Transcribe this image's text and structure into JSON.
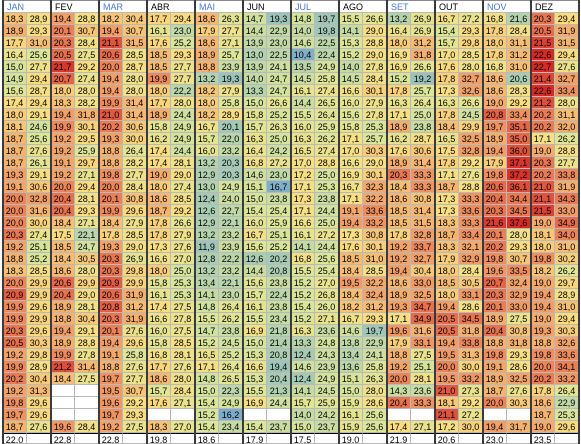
{
  "sheet": {
    "months": [
      {
        "label": "JAN",
        "highlight": true
      },
      {
        "label": "FEV",
        "highlight": false
      },
      {
        "label": "MAR",
        "highlight": true
      },
      {
        "label": "ABR",
        "highlight": false
      },
      {
        "label": "MAI",
        "highlight": true
      },
      {
        "label": "JUN",
        "highlight": false
      },
      {
        "label": "JUL",
        "highlight": true
      },
      {
        "label": "AGO",
        "highlight": false
      },
      {
        "label": "SET",
        "highlight": true
      },
      {
        "label": "OUT",
        "highlight": false
      },
      {
        "label": "NOV",
        "highlight": true
      },
      {
        "label": "DEZ",
        "highlight": false
      }
    ],
    "rows": [
      [
        "18,3",
        "28,9",
        "19,4",
        "28,8",
        "18,2",
        "30,4",
        "17,7",
        "29,4",
        "18,6",
        "26,3",
        "14,7",
        "19,3",
        "14,8",
        "19,7",
        "15,5",
        "26,6",
        "13,2",
        "26,9",
        "16,7",
        "27,2",
        "16,8",
        "21,6",
        "20,3",
        "29,4"
      ],
      [
        "18,9",
        "29,3",
        "20,1",
        "30,7",
        "19,4",
        "30,7",
        "16,1",
        "23,0",
        "17,9",
        "27,7",
        "14,4",
        "22,9",
        "14,0",
        "19,8",
        "14,1",
        "29,0",
        "16,4",
        "26,9",
        "15,4",
        "29,3",
        "17,8",
        "28,4",
        "20,5",
        "31,9"
      ],
      [
        "17,7",
        "31,0",
        "20,3",
        "28,4",
        "21,1",
        "31,5",
        "17,6",
        "25,2",
        "18,6",
        "27,1",
        "13,9",
        "23,0",
        "14,6",
        "22,5",
        "15,3",
        "28,8",
        "18,0",
        "31,2",
        "15,7",
        "29,8",
        "18,0",
        "31,1",
        "21,5",
        "31,5"
      ],
      [
        "16,4",
        "25,6",
        "20,5",
        "27,5",
        "20,6",
        "28,5",
        "18,5",
        "29,3",
        "18,9",
        "25,7",
        "13,0",
        "22,5",
        "10,4",
        "22,4",
        "15,2",
        "29,0",
        "16,9",
        "31,8",
        "17,0",
        "28,5",
        "17,8",
        "31,2",
        "22,6",
        "29,4"
      ],
      [
        "15,0",
        "27,7",
        "21,7",
        "29,2",
        "20,0",
        "28,7",
        "18,5",
        "27,7",
        "18,8",
        "23,9",
        "13,9",
        "24,1",
        "13,5",
        "24,9",
        "14,0",
        "27,8",
        "16,9",
        "26,6",
        "17,6",
        "28,0",
        "16,8",
        "31,0",
        "22,7",
        "27,6"
      ],
      [
        "14,9",
        "29,4",
        "20,7",
        "27,4",
        "19,4",
        "28,0",
        "19,9",
        "27,7",
        "13,2",
        "19,3",
        "14,0",
        "24,7",
        "14,5",
        "25,8",
        "14,5",
        "28,4",
        "15,2",
        "19,2",
        "17,8",
        "32,7",
        "18,6",
        "20,6",
        "21,4",
        "32,7"
      ],
      [
        "15,6",
        "28,7",
        "18,0",
        "28,0",
        "19,4",
        "28,0",
        "18,0",
        "22,2",
        "18,2",
        "27,9",
        "13,3",
        "24,7",
        "16,1",
        "27,4",
        "16,6",
        "30,1",
        "17,8",
        "25,7",
        "17,3",
        "32,6",
        "18,6",
        "28,3",
        "22,6",
        "33,4"
      ],
      [
        "17,4",
        "29,4",
        "18,3",
        "28,2",
        "19,9",
        "31,4",
        "17,7",
        "28,0",
        "18,0",
        "25,8",
        "15,0",
        "26,6",
        "14,4",
        "26,5",
        "16,0",
        "27,9",
        "16,3",
        "26,4",
        "16,3",
        "26,6",
        "19,0",
        "29,2",
        "21,2",
        "28,0"
      ],
      [
        "18,0",
        "29,1",
        "19,4",
        "31,8",
        "21,0",
        "31,4",
        "18,9",
        "24,4",
        "18,2",
        "28,9",
        "15,8",
        "25,2",
        "15,5",
        "26,4",
        "15,6",
        "27,8",
        "17,1",
        "25,0",
        "17,8",
        "24,5",
        "20,8",
        "33,4",
        "20,2",
        "31,1"
      ],
      [
        "18,1",
        "24,6",
        "19,9",
        "30,1",
        "20,2",
        "30,6",
        "15,8",
        "24,9",
        "16,7",
        "20,1",
        "15,7",
        "26,3",
        "16,0",
        "25,9",
        "15,8",
        "25,3",
        "18,9",
        "23,8",
        "18,4",
        "29,9",
        "19,7",
        "35,1",
        "20,2",
        "32,0"
      ],
      [
        "18,7",
        "25,6",
        "19,2",
        "29,5",
        "19,3",
        "30,0",
        "16,2",
        "24,9",
        "15,7",
        "22,0",
        "16,3",
        "25,0",
        "16,3",
        "26,2",
        "17,1",
        "25,7",
        "16,2",
        "28,7",
        "16,5",
        "32,5",
        "18,9",
        "35,0",
        "17,1",
        "26,2"
      ],
      [
        "18,7",
        "27,6",
        "19,2",
        "25,9",
        "18,8",
        "26,4",
        "17,4",
        "24,4",
        "16,0",
        "23,2",
        "16,4",
        "24,2",
        "16,5",
        "27,4",
        "17,0",
        "30,3",
        "17,6",
        "30,6",
        "17,5",
        "32,8",
        "19,4",
        "36,0",
        "19,0",
        "28,8"
      ],
      [
        "18,7",
        "26,1",
        "19,1",
        "29,7",
        "18,8",
        "28,2",
        "17,4",
        "28,1",
        "13,2",
        "20,3",
        "16,8",
        "27,2",
        "17,0",
        "28,8",
        "16,6",
        "29,0",
        "18,9",
        "31,4",
        "17,8",
        "29,2",
        "17,9",
        "37,1",
        "20,3",
        "27,7"
      ],
      [
        "19,3",
        "29,1",
        "19,2",
        "27,1",
        "19,8",
        "27,7",
        "19,0",
        "29,0",
        "12,9",
        "20,3",
        "14,6",
        "23,0",
        "17,2",
        "25,0",
        "16,9",
        "30,1",
        "20,3",
        "33,3",
        "17,1",
        "27,6",
        "19,8",
        "37,2",
        "20,2",
        "33,8"
      ],
      [
        "19,1",
        "30,6",
        "20,0",
        "29,4",
        "20,0",
        "28,4",
        "18,0",
        "27,4",
        "13,0",
        "24,9",
        "15,1",
        "16,7",
        "17,1",
        "25,3",
        "16,7",
        "32,3",
        "18,4",
        "33,3",
        "18,7",
        "28,8",
        "20,6",
        "36,1",
        "21,0",
        "31,9"
      ],
      [
        "20,0",
        "32,8",
        "20,4",
        "28,1",
        "20,1",
        "30,8",
        "18,6",
        "28,5",
        "12,4",
        "24,0",
        "15,0",
        "23,8",
        "17,3",
        "23,8",
        "17,1",
        "32,2",
        "18,6",
        "30,8",
        "17,3",
        "33,3",
        "20,4",
        "34,4",
        "21,1",
        "34,3"
      ],
      [
        "20,0",
        "31,6",
        "20,4",
        "29,3",
        "19,9",
        "29,6",
        "18,7",
        "29,2",
        "12,6",
        "22,7",
        "15,4",
        "25,4",
        "17,1",
        "24,4",
        "19,1",
        "33,6",
        "18,5",
        "31,4",
        "17,3",
        "33,6",
        "20,3",
        "34,5",
        "21,5",
        "33,0"
      ],
      [
        "20,0",
        "30,0",
        "18,4",
        "27,1",
        "18,4",
        "27,9",
        "17,8",
        "26,6",
        "12,9",
        "22,1",
        "16,0",
        "25,9",
        "16,6",
        "25,0",
        "19,4",
        "33,2",
        "18,5",
        "31,5",
        "18,3",
        "33,3",
        "21,6",
        "37,6",
        "19,0",
        "34,9"
      ],
      [
        "20,3",
        "27,4",
        "17,5",
        "22,1",
        "17,8",
        "28,5",
        "17,8",
        "27,9",
        "13,2",
        "23,2",
        "16,7",
        "25,1",
        "16,1",
        "27,2",
        "17,3",
        "30,8",
        "17,8",
        "32,8",
        "18,7",
        "33,4",
        "20,1",
        "28,0",
        "18,1",
        "34,0"
      ],
      [
        "19,2",
        "25,1",
        "18,5",
        "24,7",
        "19,3",
        "29,0",
        "17,3",
        "27,6",
        "11,9",
        "23,9",
        "15,6",
        "25,2",
        "14,1",
        "24,4",
        "17,6",
        "30,1",
        "19,2",
        "33,7",
        "18,3",
        "32,1",
        "20,2",
        "29,3",
        "18,0",
        "31,0"
      ],
      [
        "18,8",
        "25,2",
        "18,4",
        "30,5",
        "20,3",
        "26,9",
        "16,6",
        "27,0",
        "12,8",
        "22,2",
        "12,6",
        "20,2",
        "16,8",
        "25,6",
        "18,5",
        "31,0",
        "19,2",
        "32,7",
        "17,9",
        "32,9",
        "19,8",
        "30,7",
        "19,8",
        "30,2"
      ],
      [
        "18,3",
        "28,5",
        "18,6",
        "28,0",
        "20,3",
        "29,8",
        "18,0",
        "25,0",
        "13,2",
        "23,2",
        "14,4",
        "20,8",
        "15,5",
        "25,4",
        "18,4",
        "28,5",
        "19,4",
        "30,4",
        "18,0",
        "28,4",
        "19,6",
        "33,5",
        "18,2",
        "26,2"
      ],
      [
        "20,0",
        "29,9",
        "20,6",
        "29,9",
        "20,9",
        "29,9",
        "15,8",
        "25,3",
        "13,4",
        "22,1",
        "15,6",
        "23,8",
        "15,2",
        "27,0",
        "19,5",
        "32,2",
        "18,6",
        "33,0",
        "18,5",
        "30,5",
        "20,7",
        "32,4",
        "19,0",
        "29,7"
      ],
      [
        "20,9",
        "29,9",
        "20,4",
        "29,0",
        "20,6",
        "31,9",
        "16,1",
        "25,3",
        "14,1",
        "23,0",
        "15,7",
        "22,4",
        "15,2",
        "26,8",
        "18,4",
        "32,4",
        "18,9",
        "32,5",
        "18,0",
        "33,1",
        "20,3",
        "32,9",
        "19,4",
        "28,9"
      ],
      [
        "19,9",
        "29,6",
        "18,9",
        "28,1",
        "20,8",
        "31,2",
        "17,4",
        "27,5",
        "14,8",
        "26,4",
        "16,1",
        "23,8",
        "15,4",
        "26,0",
        "18,2",
        "31,2",
        "19,3",
        "34,7",
        "19,4",
        "28,6",
        "20,1",
        "33,0",
        "19,4",
        "31,0"
      ],
      [
        "19,9",
        "29,9",
        "18,8",
        "30,4",
        "20,3",
        "31,9",
        "16,6",
        "27,8",
        "15,5",
        "26,2",
        "15,5",
        "23,4",
        "15,2",
        "27,1",
        "16,7",
        "29,3",
        "17,1",
        "34,9",
        "20,5",
        "34,5",
        "18,9",
        "27,5",
        "19,0",
        "29,4"
      ],
      [
        "20,3",
        "29,6",
        "19,4",
        "29,1",
        "20,1",
        "27,6",
        "16,0",
        "27,5",
        "14,7",
        "23,8",
        "16,9",
        "21,8",
        "16,3",
        "23,6",
        "14,6",
        "19,7",
        "19,6",
        "31,6",
        "20,5",
        "31,8",
        "20,4",
        "30,8",
        "19,3",
        "30,3"
      ],
      [
        "20,5",
        "30,3",
        "18,9",
        "28,8",
        "19,4",
        "29,6",
        "15,8",
        "28,5",
        "15,2",
        "24,5",
        "15,0",
        "21,4",
        "13,3",
        "24,8",
        "13,8",
        "22,9",
        "17,9",
        "33,1",
        "19,4",
        "33,8",
        "18,8",
        "31,8",
        "18,8",
        "32,6"
      ],
      [
        "19,2",
        "29,8",
        "19,9",
        "27,8",
        "19,1",
        "25,8",
        "16,8",
        "28,1",
        "16,5",
        "25,2",
        "15,3",
        "20,8",
        "12,4",
        "24,3",
        "13,4",
        "24,1",
        "18,8",
        "27,5",
        "19,5",
        "31,3",
        "19,8",
        "29,3",
        "19,8",
        "33,6"
      ],
      [
        "19,9",
        "28,9",
        "21,2",
        "31,4",
        "18,8",
        "27,6",
        "17,7",
        "27,6",
        "17,1",
        "26,4",
        "16,6",
        "19,4",
        "14,6",
        "23,9",
        "13,6",
        "25,8",
        "19,2",
        "25,1",
        "20,0",
        "30,0",
        "19,1",
        "28,6",
        "20,0",
        "34,1"
      ],
      [
        "20,2",
        "30,4",
        "18,4",
        "27,5",
        "19,7",
        "27,7",
        "18,6",
        "28,0",
        "14,8",
        "26,5",
        "15,3",
        "20,4",
        "12,4",
        "24,9",
        "15,1",
        "26,3",
        "20,0",
        "28,1",
        "19,5",
        "33,2",
        "18,9",
        "32,5",
        "20,2",
        "33,2"
      ],
      [
        "19,2",
        "31,3",
        "",
        "",
        "19,5",
        "30,7",
        "15,7",
        "28,4",
        "15,0",
        "22,3",
        "15,5",
        "21,3",
        "14,1",
        "24,5",
        "15,0",
        "28,0",
        "14,3",
        "23,6",
        "21,0",
        "27,3",
        "18,7",
        "27,6",
        "17,8",
        "26,4"
      ],
      [
        "19,8",
        "29,6",
        "",
        "",
        "19,6",
        "29,2",
        "17,6",
        "27,1",
        "15,4",
        "24,9",
        "16,9",
        "24,4",
        "15,7",
        "25,9",
        "15,9",
        "28,6",
        "20,4",
        "33,3",
        "18,1",
        "29,2",
        "20,0",
        "30,3",
        "18,6",
        "22,9"
      ],
      [
        "19,7",
        "29,6",
        "",
        "",
        "19,7",
        "29,3",
        "",
        "",
        "15,2",
        "16,2",
        "",
        "",
        "14,0",
        "24,2",
        "16,1",
        "25,6",
        "",
        "",
        "21,1",
        "27,2",
        "",
        "",
        "18,7",
        "25,3"
      ],
      [
        "18,7",
        "27,6",
        "19,6",
        "28,4",
        "19,2",
        "27,5",
        "18,3",
        "27,0",
        "15,4",
        "23,4",
        "15,4",
        "23,7",
        "15,0",
        "23,7",
        "15,9",
        "25,6",
        "17,4",
        "27,1",
        "17,2",
        "30,0",
        "19,4",
        "31,7",
        "19,0",
        "29,6"
      ]
    ],
    "averages": [
      "22,0",
      "",
      "22,8",
      "",
      "22,8",
      "",
      "19,8",
      "",
      "18,6",
      "",
      "17,9",
      "",
      "17,5",
      "",
      "19,0",
      "",
      "21,9",
      "",
      "20,6",
      "",
      "23,0",
      "",
      "23,5",
      ""
    ]
  }
}
